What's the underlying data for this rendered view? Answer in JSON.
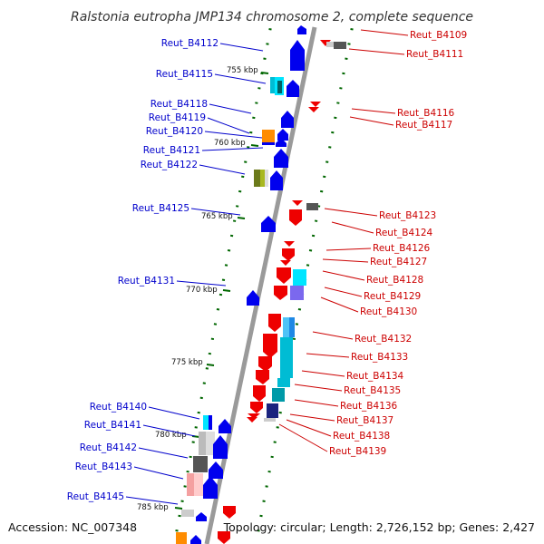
{
  "title": "Ralstonia eutropha JMP134 chromosome 2, complete sequence",
  "footer": {
    "accession": "Accession: NC_007348",
    "summary": "Topology: circular; Length: 2,726,152 bp; Genes: 2,427"
  },
  "colors": {
    "left_label": "#0000cc",
    "right_label": "#cc0000",
    "tick": "#006600",
    "backbone": "#888888"
  },
  "kbp_labels": [
    "755 kbp",
    "760 kbp",
    "765 kbp",
    "770 kbp",
    "775 kbp",
    "780 kbp",
    "785 kbp"
  ],
  "left_labels": [
    "Reut_B4112",
    "Reut_B4115",
    "Reut_B4118",
    "Reut_B4119",
    "Reut_B4120",
    "Reut_B4121",
    "Reut_B4122",
    "Reut_B4125",
    "Reut_B4131",
    "Reut_B4140",
    "Reut_B4141",
    "Reut_B4142",
    "Reut_B4143",
    "Reut_B4145"
  ],
  "right_labels": [
    "Reut_B4109",
    "Reut_B4111",
    "Reut_B4116",
    "Reut_B4117",
    "Reut_B4123",
    "Reut_B4124",
    "Reut_B4126",
    "Reut_B4127",
    "Reut_B4128",
    "Reut_B4129",
    "Reut_B4130",
    "Reut_B4132",
    "Reut_B4133",
    "Reut_B4134",
    "Reut_B4135",
    "Reut_B4136",
    "Reut_B4137",
    "Reut_B4138",
    "Reut_B4139"
  ]
}
